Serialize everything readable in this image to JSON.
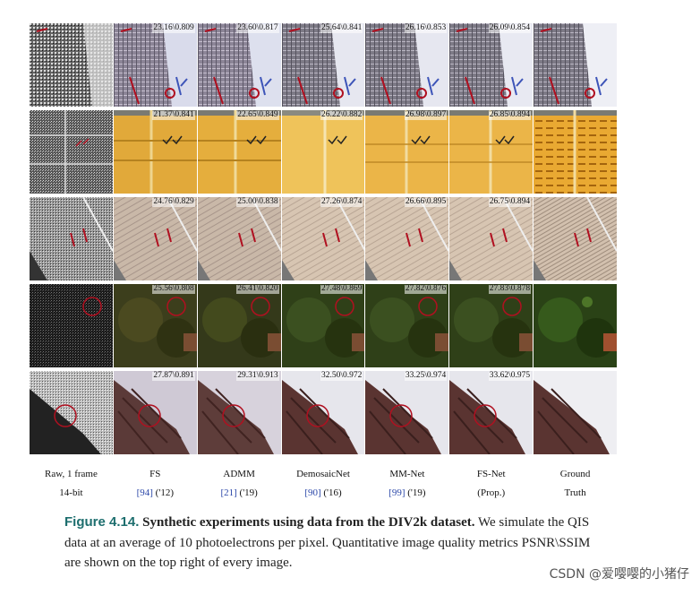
{
  "rows": [
    {
      "name": "row-fabric",
      "metrics": [
        "23.16\\0.809",
        "23.60\\0.817",
        "25.64\\0.841",
        "26.16\\0.853",
        "26.09\\0.854"
      ]
    },
    {
      "name": "row-yellow-panel",
      "metrics": [
        "21.37\\0.841",
        "22.65\\0.849",
        "26.22\\0.882",
        "26.98\\0.897",
        "26.85\\0.894"
      ]
    },
    {
      "name": "row-roof",
      "metrics": [
        "24.76\\0.829",
        "25.00\\0.838",
        "27.26\\0.874",
        "26.66\\0.895",
        "26.75\\0.894"
      ]
    },
    {
      "name": "row-tree",
      "metrics": [
        "25.56\\0.808",
        "26.41\\0.820",
        "27.48\\0.869",
        "27.82\\0.876",
        "27.83\\0.878"
      ]
    },
    {
      "name": "row-bird-wing",
      "metrics": [
        "27.87\\0.891",
        "29.31\\0.913",
        "32.50\\0.972",
        "33.25\\0.974",
        "33.62\\0.975"
      ]
    }
  ],
  "columns": [
    {
      "name": "Raw, 1 frame",
      "sub": "14-bit",
      "ref": "",
      "year": ""
    },
    {
      "name": "FS",
      "sub": "",
      "ref": "[94]",
      "year": " ('12)"
    },
    {
      "name": "ADMM",
      "sub": "",
      "ref": "[21]",
      "year": " ('19)"
    },
    {
      "name": "DemosaicNet",
      "sub": "",
      "ref": "[90]",
      "year": " ('16)"
    },
    {
      "name": "MM-Net",
      "sub": "",
      "ref": "[99]",
      "year": " ('19)"
    },
    {
      "name": "FS-Net",
      "sub": "(Prop.)",
      "ref": "",
      "year": ""
    },
    {
      "name": "Ground",
      "sub": "Truth",
      "ref": "",
      "year": ""
    }
  ],
  "caption": {
    "label": "Figure 4.14.",
    "title": "Synthetic experiments using data from the DIV2k dataset.",
    "body": "We simulate the QIS data at an average of 10 photoelectrons per pixel. Quantitative image quality metrics PSNR\\SSIM are shown on the top right of every image."
  },
  "watermark": "CSDN @爱嘤嘤的小猪仔",
  "colors": {
    "caption_label": "#1d6e6e",
    "reference_link": "#2b47a8",
    "annotation_red": "#b01020"
  }
}
